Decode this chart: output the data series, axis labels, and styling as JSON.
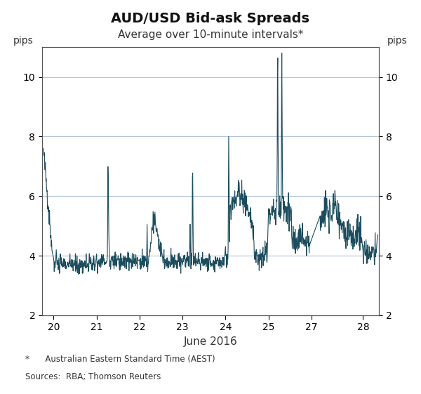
{
  "title": "AUD/USD Bid-ask Spreads",
  "subtitle": "Average over 10-minute intervals*",
  "xlabel": "June 2016",
  "ylabel_left": "pips",
  "ylabel_right": "pips",
  "ylim": [
    2,
    11
  ],
  "yticks": [
    2,
    4,
    6,
    8,
    10
  ],
  "footnote1": "*      Australian Eastern Standard Time (AEST)",
  "footnote2": "Sources:  RBA; Thomson Reuters",
  "line_color": "#1c4d5e",
  "line_width": 0.8,
  "grid_color": "#b0c4d8",
  "background_color": "#ffffff",
  "title_fontsize": 14,
  "subtitle_fontsize": 11,
  "axis_fontsize": 10,
  "tick_fontsize": 10
}
